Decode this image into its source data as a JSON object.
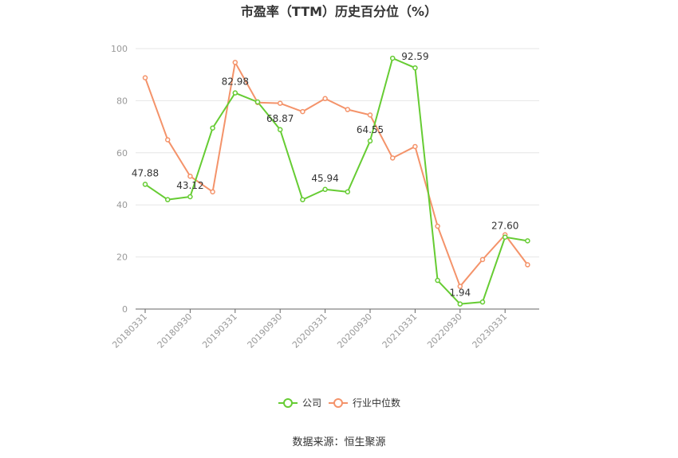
{
  "chart_data": {
    "type": "line",
    "title": "市盈率（TTM）历史百分位（%）",
    "xlabel": "",
    "ylabel": "",
    "ylim": [
      0,
      100
    ],
    "yticks": [
      "0",
      "20",
      "40",
      "60",
      "80",
      "100"
    ],
    "grid": true,
    "legend": "bottom-center",
    "x": [
      "20180331",
      "20180630",
      "20180930",
      "20181231",
      "20190331",
      "20190630",
      "20190930",
      "20191231",
      "20200331",
      "20200630",
      "20200930",
      "20201231",
      "20210331",
      "20210630",
      "20220930",
      "20221231",
      "20230331",
      "20230630"
    ],
    "xtick_labels": [
      {
        "i": 0,
        "label": "20180331"
      },
      {
        "i": 2,
        "label": "20180930"
      },
      {
        "i": 4,
        "label": "20190331"
      },
      {
        "i": 6,
        "label": "20190930"
      },
      {
        "i": 8,
        "label": "20200331"
      },
      {
        "i": 10,
        "label": "20200930"
      },
      {
        "i": 12,
        "label": "20210331"
      },
      {
        "i": 14,
        "label": "20220930"
      },
      {
        "i": 16,
        "label": "20230331"
      }
    ],
    "series": [
      {
        "name": "公司",
        "color": "#66cc33",
        "values": [
          47.88,
          42.0,
          43.12,
          69.5,
          82.98,
          79.5,
          68.87,
          42.0,
          45.94,
          45.0,
          64.55,
          96.3,
          92.59,
          11.0,
          1.94,
          2.7,
          27.6,
          26.2
        ],
        "labels": [
          {
            "i": 0,
            "text": "47.88"
          },
          {
            "i": 2,
            "text": "43.12"
          },
          {
            "i": 4,
            "text": "82.98"
          },
          {
            "i": 6,
            "text": "68.87"
          },
          {
            "i": 8,
            "text": "45.94"
          },
          {
            "i": 10,
            "text": "64.55"
          },
          {
            "i": 12,
            "text": "92.59"
          },
          {
            "i": 14,
            "text": "1.94"
          },
          {
            "i": 16,
            "text": "27.60"
          }
        ]
      },
      {
        "name": "行业中位数",
        "color": "#f4936a",
        "values": [
          88.8,
          65.0,
          51.0,
          45.0,
          94.7,
          79.3,
          79.0,
          75.8,
          80.8,
          76.6,
          74.5,
          58.0,
          62.4,
          31.8,
          8.7,
          19.0,
          28.5,
          17.0
        ]
      }
    ]
  },
  "source_text": "数据来源：恒生聚源"
}
